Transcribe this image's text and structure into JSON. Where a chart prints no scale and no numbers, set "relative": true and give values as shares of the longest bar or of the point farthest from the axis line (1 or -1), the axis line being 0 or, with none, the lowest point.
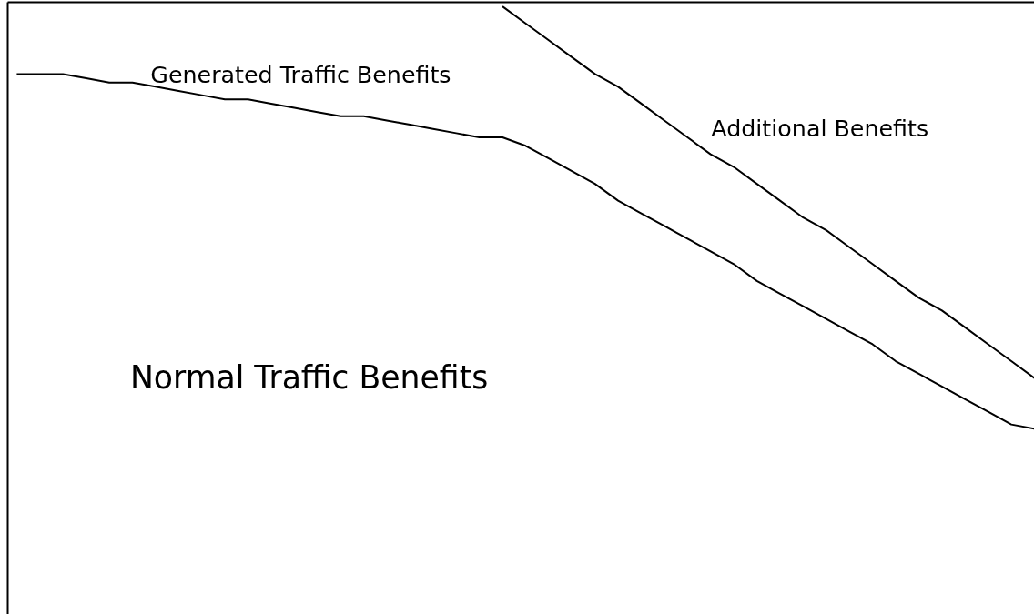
{
  "chart_data": {
    "type": "line",
    "relative": true,
    "grid": false,
    "marker": "none",
    "line_style": "solid",
    "categories": [
      null,
      null,
      null,
      null,
      null,
      null,
      null,
      null,
      null,
      null,
      null,
      null,
      null,
      null,
      null,
      null,
      null,
      null,
      null,
      null,
      null,
      null,
      null,
      null,
      null,
      null,
      null,
      null,
      null,
      null,
      null,
      null,
      null,
      null,
      null,
      null,
      null,
      null,
      null,
      null,
      null,
      null,
      null,
      null,
      null
    ],
    "series": [
      {
        "color": "#000000",
        "values": [
          0.84,
          0.84,
          0.84,
          0.83,
          0.82,
          0.82,
          0.81,
          0.8,
          0.79,
          0.78,
          0.78,
          0.77,
          0.76,
          0.75,
          0.74,
          0.74,
          0.73,
          0.72,
          0.71,
          0.7,
          0.69,
          0.69,
          0.67,
          0.64,
          0.61,
          0.58,
          0.54,
          0.51,
          0.48,
          0.45,
          0.42,
          0.39,
          0.35,
          0.32,
          0.29,
          0.26,
          0.23,
          0.2,
          0.16,
          0.13,
          0.1,
          0.07,
          0.04,
          0.01,
          0.0
        ]
      },
      {
        "color": "#000000",
        "values": [
          null,
          null,
          null,
          null,
          null,
          null,
          null,
          null,
          null,
          null,
          null,
          null,
          null,
          null,
          null,
          null,
          null,
          null,
          null,
          null,
          null,
          1.0,
          0.96,
          0.92,
          0.88,
          0.84,
          0.81,
          0.77,
          0.73,
          0.69,
          0.65,
          0.62,
          0.58,
          0.54,
          0.5,
          0.47,
          0.43,
          0.39,
          0.35,
          0.31,
          0.28,
          0.24,
          0.2,
          0.16,
          0.12
        ]
      }
    ],
    "annotations": [
      "Generated Traffic Benefits",
      "Additional  Benefits",
      "Normal Traffic Benefits"
    ]
  }
}
